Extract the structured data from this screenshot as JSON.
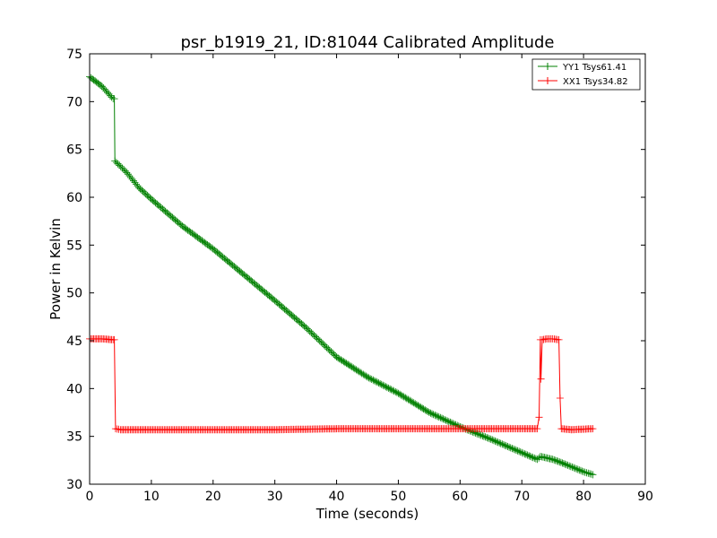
{
  "chart_data": {
    "type": "line",
    "title": "psr_b1919_21, ID:81044 Calibrated Amplitude",
    "xlabel": "Time (seconds)",
    "ylabel": "Power in Kelvin",
    "xlim": [
      0,
      90
    ],
    "ylim": [
      30,
      75
    ],
    "xticks": [
      0,
      10,
      20,
      30,
      40,
      50,
      60,
      70,
      80,
      90
    ],
    "yticks": [
      30,
      35,
      40,
      45,
      50,
      55,
      60,
      65,
      70,
      75
    ],
    "grid": false,
    "legend_position": "top-right",
    "series": [
      {
        "name": "YY1 Tsys61.41",
        "color": "#008000",
        "marker": "+",
        "x": [
          0,
          2,
          3.8,
          4.0,
          4.1,
          6,
          8,
          10,
          15,
          20,
          25,
          30,
          35,
          40,
          45,
          50,
          55,
          60,
          65,
          70,
          72.5,
          73,
          75,
          77,
          80,
          81.5
        ],
        "y": [
          72.6,
          71.6,
          70.3,
          70.3,
          63.8,
          62.6,
          61.0,
          59.8,
          57.0,
          54.6,
          51.9,
          49.2,
          46.4,
          43.3,
          41.2,
          39.5,
          37.5,
          36.0,
          34.7,
          33.3,
          32.6,
          32.9,
          32.6,
          32.1,
          31.3,
          31.0
        ]
      },
      {
        "name": "XX1 Tsys34.82",
        "color": "#ff0000",
        "marker": "+",
        "x": [
          0,
          2,
          3.8,
          4.0,
          4.2,
          5,
          10,
          20,
          30,
          40,
          50,
          60,
          70,
          72.5,
          72.8,
          73.0,
          73.1,
          73.3,
          74,
          75,
          76.0,
          76.2,
          76.4,
          78,
          81.5
        ],
        "y": [
          45.2,
          45.2,
          45.1,
          45.1,
          35.8,
          35.7,
          35.7,
          35.7,
          35.7,
          35.8,
          35.8,
          35.8,
          35.8,
          35.8,
          37.0,
          45.1,
          41.0,
          45.1,
          45.2,
          45.2,
          45.1,
          39.0,
          35.8,
          35.7,
          35.8
        ]
      }
    ]
  }
}
